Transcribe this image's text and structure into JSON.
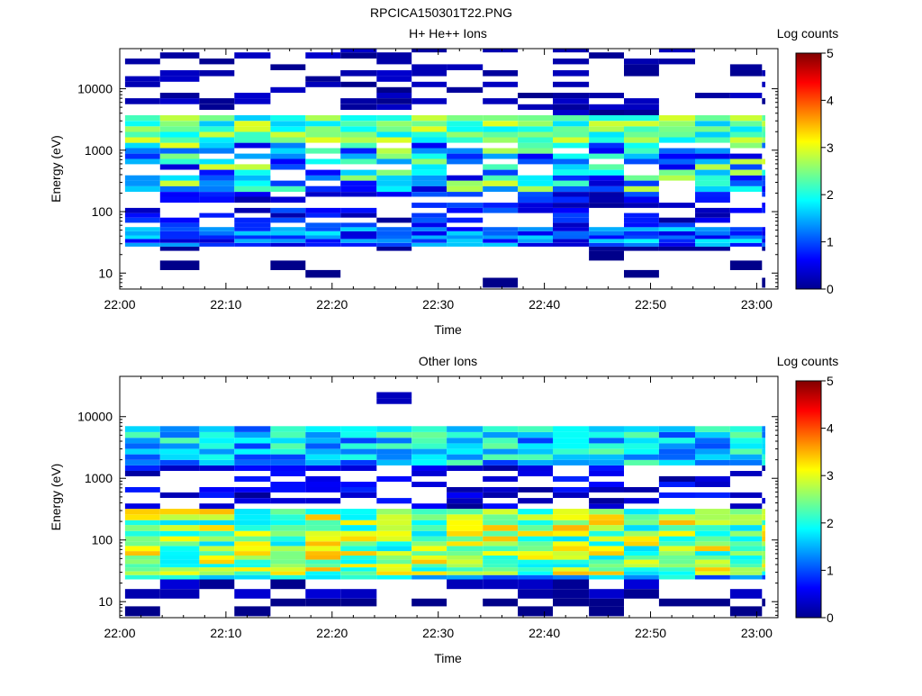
{
  "figure_title": "RPCICA150301T22.PNG",
  "colorbar": {
    "label": "Log counts",
    "ticks": [
      0,
      1,
      2,
      3,
      4,
      5
    ]
  },
  "chart_data": [
    {
      "type": "heatmap",
      "title": "H+ He++ Ions",
      "xlabel": "Time",
      "ylabel": "Energy (eV)",
      "x_ticks": [
        "22:00",
        "22:10",
        "22:20",
        "22:30",
        "22:40",
        "22:50",
        "23:00"
      ],
      "y_ticks": [
        "10",
        "100",
        "1000",
        "10000"
      ],
      "y_scale": "log",
      "ylim": [
        5.5,
        45000
      ],
      "xlim_minutes": [
        0,
        62
      ],
      "clim": [
        0,
        5
      ],
      "colorbar_label": "Log counts",
      "time_start_minutes": [
        0.5,
        3.8,
        7.5,
        10.8,
        14.2,
        17.5,
        20.8,
        24.2,
        27.5,
        30.8,
        34.2,
        37.5,
        40.8,
        44.2,
        47.5,
        50.8,
        54.2,
        57.5,
        60.5
      ],
      "energy_bins_ev": [
        5.8,
        8.4,
        11.2,
        16,
        23,
        27,
        31,
        36,
        41,
        48,
        56,
        66,
        80,
        95,
        115,
        140,
        175,
        210,
        260,
        320,
        390,
        480,
        590,
        720,
        880,
        1080,
        1320,
        1620,
        1990,
        2450,
        3000,
        3700,
        4550,
        5600,
        7000,
        8600,
        10600,
        13000,
        16000,
        20000,
        25000,
        31000,
        39000,
        45000
      ],
      "notes": "Strong band ~1500-3000 eV (log counts ~2-3) and ~200-1300 eV (~1.5-3); sparse low-count lines above 4000 eV; low-energy band 25-60 eV (~0.5-2)."
    },
    {
      "type": "heatmap",
      "title": "Other Ions",
      "xlabel": "Time",
      "ylabel": "Energy (eV)",
      "x_ticks": [
        "22:00",
        "22:10",
        "22:20",
        "22:30",
        "22:40",
        "22:50",
        "23:00"
      ],
      "y_ticks": [
        "10",
        "100",
        "1000",
        "10000"
      ],
      "y_scale": "log",
      "ylim": [
        5.5,
        45000
      ],
      "xlim_minutes": [
        0,
        62
      ],
      "clim": [
        0,
        5
      ],
      "colorbar_label": "Log counts",
      "time_start_minutes": [
        0.5,
        3.8,
        7.5,
        10.8,
        14.2,
        17.5,
        20.8,
        24.2,
        27.5,
        30.8,
        34.2,
        37.5,
        40.8,
        44.2,
        47.5,
        50.8,
        54.2,
        57.5,
        60.5
      ],
      "energy_bins_ev": [
        5.8,
        8.4,
        11.2,
        16,
        23,
        27,
        31,
        36,
        41,
        48,
        56,
        66,
        80,
        95,
        115,
        140,
        175,
        210,
        260,
        320,
        390,
        480,
        590,
        720,
        880,
        1080,
        1320,
        1620,
        1990,
        2450,
        3000,
        3700,
        4550,
        5600,
        7000,
        8600,
        10600,
        13000,
        16000,
        20000,
        25000,
        31000,
        39000,
        45000
      ],
      "notes": "Broad intense band 25-300 eV (log counts ~2-3.8, peaks near 30-60 eV); band 1500-5500 eV (~1-2.5); isolated low-count lines 300-1300 eV."
    }
  ]
}
